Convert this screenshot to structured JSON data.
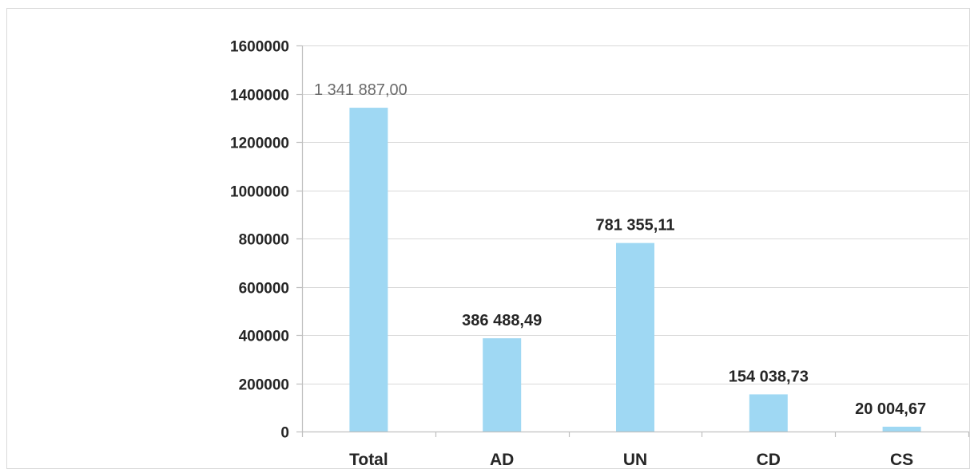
{
  "chart_data": {
    "type": "bar",
    "title": "",
    "xlabel": "",
    "ylabel": "",
    "categories": [
      "Total",
      "AD",
      "UN",
      "CD",
      "CS"
    ],
    "values": [
      1341887.0,
      386488.49,
      781355.11,
      154038.73,
      20004.67
    ],
    "data_labels": [
      "1 341 887,00",
      "386 488,49",
      "781 355,11",
      "154 038,73",
      "20 004,67"
    ],
    "ylim": [
      0,
      1600000
    ],
    "y_ticks": [
      0,
      200000,
      400000,
      600000,
      800000,
      1000000,
      1200000,
      1400000,
      1600000
    ],
    "y_tick_labels": [
      "0",
      "200000",
      "400000",
      "600000",
      "800000",
      "1000000",
      "1200000",
      "1400000",
      "1600000"
    ],
    "grid": true,
    "legend": "none",
    "bar_color": "#9fd8f3"
  }
}
